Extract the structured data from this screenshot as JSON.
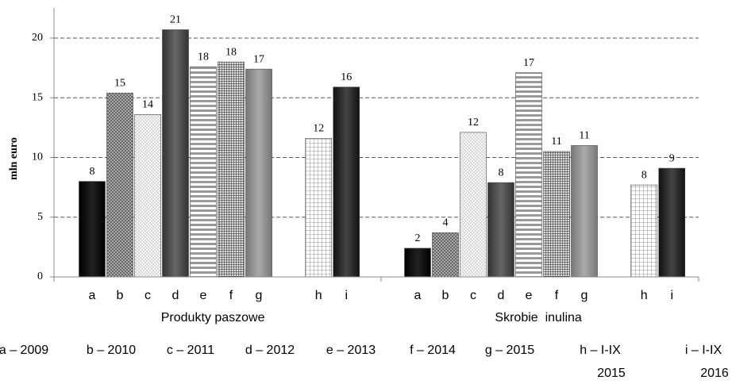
{
  "chart_data": {
    "type": "bar",
    "y_label": "mln euro",
    "ylim": [
      0,
      22
    ],
    "yticks": [
      0,
      5,
      10,
      15,
      20
    ],
    "grid": true,
    "groups": [
      {
        "name": "Produkty paszowe",
        "categories": [
          "a",
          "b",
          "c",
          "d",
          "e",
          "f",
          "g",
          "h",
          "i"
        ],
        "values": [
          8,
          15.4,
          13.6,
          20.7,
          17.6,
          18,
          17.4,
          11.6,
          15.9
        ],
        "value_labels": [
          "8",
          "15",
          "14",
          "21",
          "18",
          "18",
          "17",
          "12",
          "16"
        ]
      },
      {
        "name": "Skrobie  inulina",
        "categories": [
          "a",
          "b",
          "c",
          "d",
          "e",
          "f",
          "g",
          "h",
          "i"
        ],
        "values": [
          2.4,
          3.7,
          12.1,
          7.9,
          17.1,
          10.5,
          11,
          7.7,
          9.1
        ],
        "value_labels": [
          "2",
          "4",
          "12",
          "8",
          "17",
          "11",
          "11",
          "8",
          "9"
        ]
      }
    ],
    "legend": [
      [
        "a – 2009"
      ],
      [
        "b – 2010"
      ],
      [
        "c – 2011"
      ],
      [
        "d – 2012"
      ],
      [
        "e – 2013"
      ],
      [
        "f – 2014"
      ],
      [
        "g – 2015"
      ],
      [
        "h – I-IX",
        "2015"
      ],
      [
        "i – I-IX",
        "2016"
      ]
    ]
  }
}
